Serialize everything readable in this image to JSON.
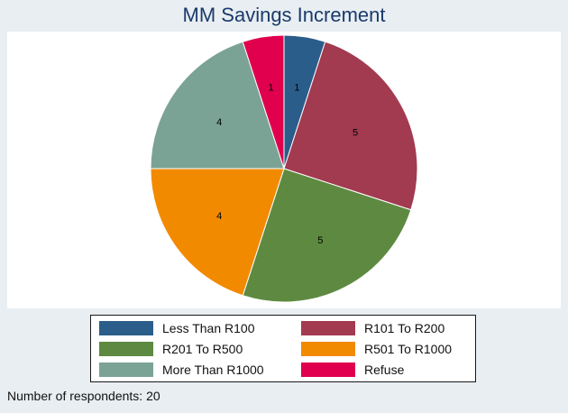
{
  "chart_data": {
    "type": "pie",
    "title": "MM Savings Increment",
    "categories": [
      "Less Than R100",
      "R101 To R200",
      "R201 To R500",
      "R501 To R1000",
      "More Than R1000",
      "Refuse"
    ],
    "values": [
      1,
      5,
      5,
      4,
      4,
      1
    ],
    "colors": [
      "#2b5d8a",
      "#a23a50",
      "#5d8a40",
      "#f28a00",
      "#7aa396",
      "#e0004d"
    ],
    "data_labels": [
      "1",
      "5",
      "5",
      "4",
      "4",
      "1"
    ],
    "start_angle_deg": 90,
    "direction": "clockwise",
    "legend_position": "bottom",
    "legend_columns": 2
  },
  "footnote": "Number of respondents: 20"
}
